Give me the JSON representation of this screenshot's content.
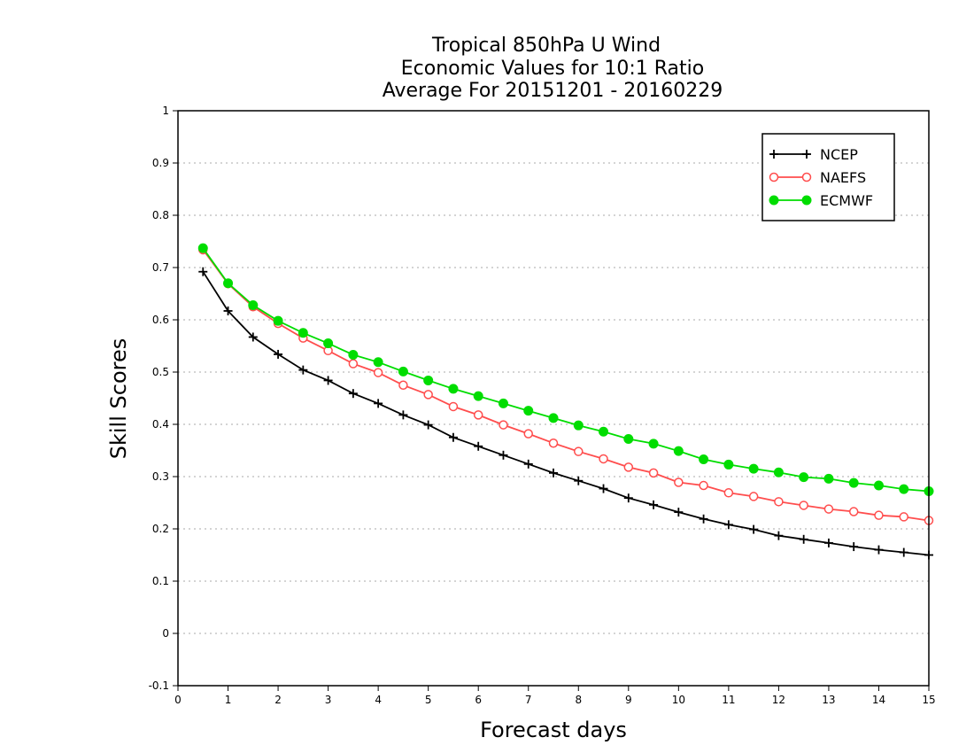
{
  "chart_data": {
    "type": "line",
    "title_lines": [
      "Tropical 850hPa U Wind",
      "Economic Values for 10:1 Ratio",
      "Average For 20151201 - 20160229"
    ],
    "xlabel": "Forecast days",
    "ylabel": "Skill Scores",
    "xlim": [
      0,
      15
    ],
    "ylim": [
      -0.1,
      1
    ],
    "x_ticks": [
      0,
      1,
      2,
      3,
      4,
      5,
      6,
      7,
      8,
      9,
      10,
      11,
      12,
      13,
      14,
      15
    ],
    "x_tick_labels": [
      "0",
      "1",
      "2",
      "3",
      "4",
      "5",
      "6",
      "7",
      "8",
      "9",
      "10",
      "11",
      "12",
      "13",
      "14",
      "15"
    ],
    "y_ticks": [
      -0.1,
      0,
      0.1,
      0.2,
      0.3,
      0.4,
      0.5,
      0.6,
      0.7,
      0.8,
      0.9,
      1
    ],
    "y_tick_labels": [
      "-0.1",
      "0",
      "0.1",
      "0.2",
      "0.3",
      "0.4",
      "0.5",
      "0.6",
      "0.7",
      "0.8",
      "0.9",
      "1"
    ],
    "grid": "horizontal dotted",
    "legend_position": "top-right",
    "x": [
      0.5,
      1,
      1.5,
      2,
      2.5,
      3,
      3.5,
      4,
      4.5,
      5,
      5.5,
      6,
      6.5,
      7,
      7.5,
      8,
      8.5,
      9,
      9.5,
      10,
      10.5,
      11,
      11.5,
      12,
      12.5,
      13,
      13.5,
      14,
      14.5,
      15
    ],
    "series": [
      {
        "name": "NCEP",
        "color": "#000000",
        "marker": "plus",
        "values": [
          0.692,
          0.617,
          0.567,
          0.534,
          0.504,
          0.484,
          0.459,
          0.44,
          0.418,
          0.399,
          0.375,
          0.358,
          0.341,
          0.324,
          0.307,
          0.292,
          0.277,
          0.259,
          0.246,
          0.232,
          0.219,
          0.208,
          0.199,
          0.187,
          0.18,
          0.173,
          0.166,
          0.16,
          0.155,
          0.15
        ]
      },
      {
        "name": "NAEFS",
        "color": "#ff4d4d",
        "marker": "open-circle",
        "values": [
          0.734,
          0.669,
          0.625,
          0.593,
          0.565,
          0.541,
          0.516,
          0.499,
          0.475,
          0.457,
          0.434,
          0.418,
          0.399,
          0.382,
          0.364,
          0.348,
          0.334,
          0.318,
          0.307,
          0.289,
          0.283,
          0.269,
          0.262,
          0.252,
          0.245,
          0.238,
          0.233,
          0.226,
          0.223,
          0.216
        ]
      },
      {
        "name": "ECMWF",
        "color": "#00dd00",
        "marker": "filled-circle",
        "values": [
          0.737,
          0.67,
          0.628,
          0.598,
          0.575,
          0.555,
          0.533,
          0.519,
          0.501,
          0.484,
          0.468,
          0.454,
          0.44,
          0.426,
          0.412,
          0.398,
          0.386,
          0.372,
          0.363,
          0.349,
          0.333,
          0.323,
          0.315,
          0.308,
          0.299,
          0.296,
          0.288,
          0.283,
          0.276,
          0.272
        ]
      }
    ]
  }
}
